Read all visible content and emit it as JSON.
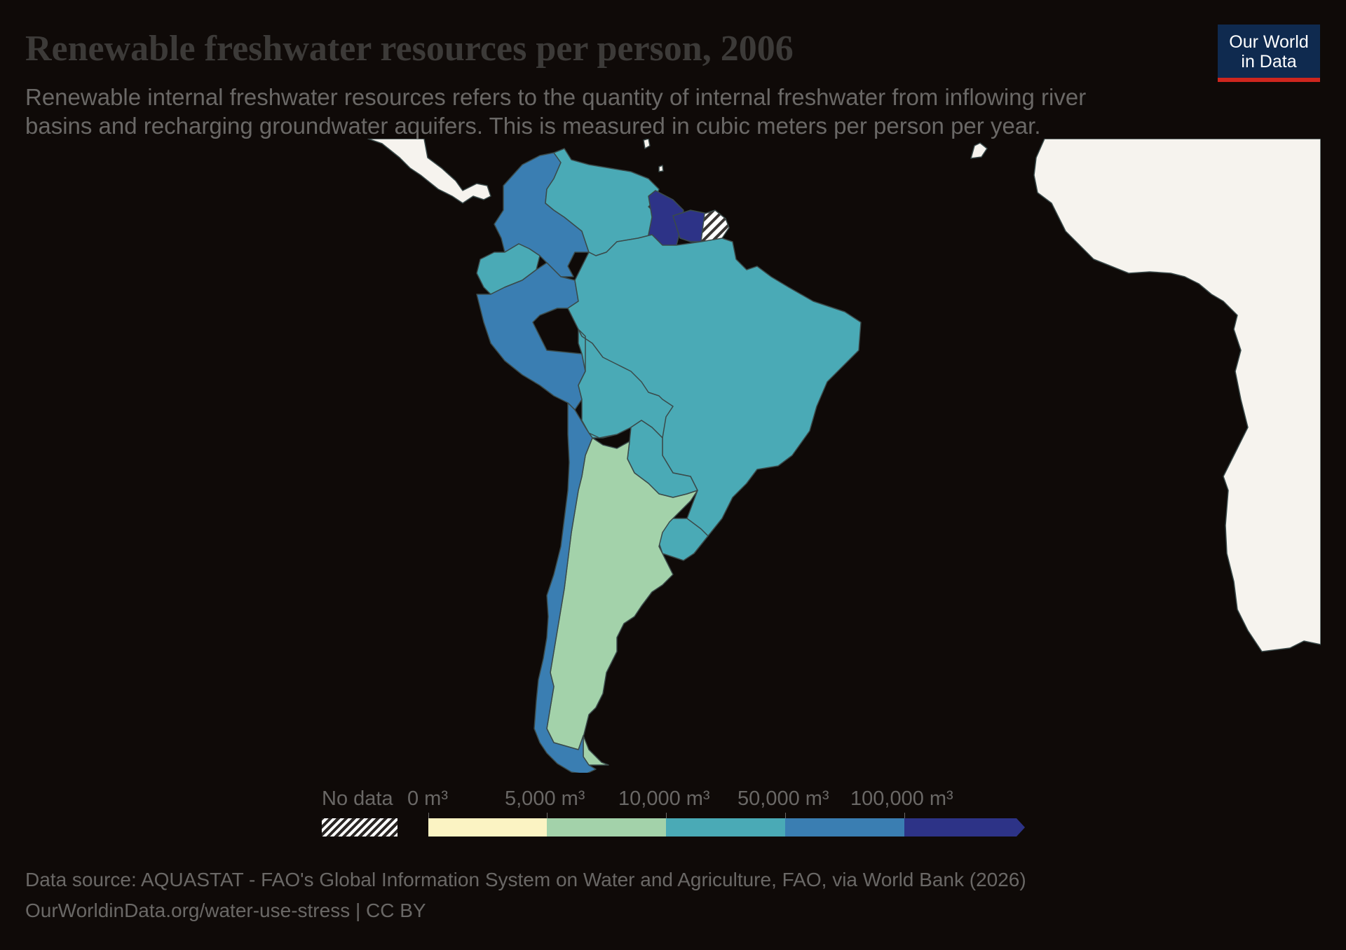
{
  "header": {
    "title": "Renewable freshwater resources per person, 2006",
    "subtitle": "Renewable internal freshwater resources refers to the quantity of internal freshwater from inflowing river basins and recharging groundwater aquifers. This is measured in cubic meters per person per year."
  },
  "logo": {
    "line1": "Our World",
    "line2": "in Data"
  },
  "colors": {
    "background": "#0f0a08",
    "land_other": "#f6f3ee",
    "border": "#3a4a4a",
    "bin_0_5k": "#fbf3c3",
    "bin_5k_10k": "#a3d2aa",
    "bin_10k_50k": "#4aaab6",
    "bin_50k_100k": "#3a7eb2",
    "bin_100k_plus": "#2d3387",
    "no_data": "hatched"
  },
  "legend": {
    "no_data_label": "No data",
    "bins": [
      {
        "label": "0 m³",
        "color": "#fbf3c3"
      },
      {
        "label": "5,000 m³",
        "color": "#a3d2aa"
      },
      {
        "label": "10,000 m³",
        "color": "#4aaab6"
      },
      {
        "label": "50,000 m³",
        "color": "#3a7eb2"
      },
      {
        "label": "100,000 m³",
        "color": "#2d3387"
      }
    ]
  },
  "regions": [
    {
      "name": "Colombia",
      "bin": "50,000–100,000 m³"
    },
    {
      "name": "Venezuela",
      "bin": "10,000–50,000 m³"
    },
    {
      "name": "Guyana",
      "bin": ">100,000 m³"
    },
    {
      "name": "Suriname",
      "bin": ">100,000 m³"
    },
    {
      "name": "French Guiana",
      "bin": "No data"
    },
    {
      "name": "Ecuador",
      "bin": "10,000–50,000 m³"
    },
    {
      "name": "Peru",
      "bin": "50,000–100,000 m³"
    },
    {
      "name": "Brazil",
      "bin": "10,000–50,000 m³"
    },
    {
      "name": "Bolivia",
      "bin": "10,000–50,000 m³"
    },
    {
      "name": "Paraguay",
      "bin": "10,000–50,000 m³"
    },
    {
      "name": "Uruguay",
      "bin": "10,000–50,000 m³"
    },
    {
      "name": "Argentina",
      "bin": "5,000–10,000 m³"
    },
    {
      "name": "Chile",
      "bin": "50,000–100,000 m³"
    }
  ],
  "footer": {
    "source": "Data source: AQUASTAT - FAO's Global Information System on Water and Agriculture, FAO, via World Bank (2026)",
    "url": "OurWorldinData.org/water-use-stress | CC BY"
  }
}
